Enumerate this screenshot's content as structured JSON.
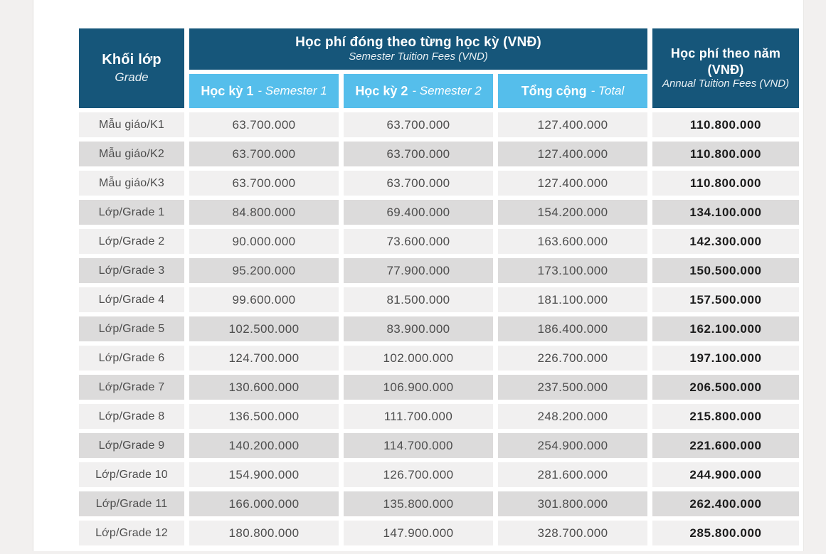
{
  "colors": {
    "header_dark": "#16567A",
    "header_light_blue": "#55BEEB",
    "row_light": "#F1F0F0",
    "row_shaded": "#DCDBDB",
    "body_text": "#4D4D4D",
    "annual_text": "#1C1C1C",
    "header_text": "#FFFFFF",
    "viewer_background": "#F2F0EF"
  },
  "table": {
    "header": {
      "grade_label": "Khối lớp",
      "grade_sublabel": "Grade",
      "semester_span_title": "Học phí đóng theo từng học kỳ (VNĐ)",
      "semester_span_subtitle": "Semester Tuition Fees (VND)",
      "sem1_label": "Học kỳ 1",
      "sem1_sublabel": "- Semester 1",
      "sem2_label": "Học kỳ 2",
      "sem2_sublabel": "- Semester 2",
      "total_label": "Tổng cộng",
      "total_sublabel": "- Total",
      "annual_title": "Học phí theo năm (VNĐ)",
      "annual_subtitle": "Annual Tuition Fees (VND)"
    },
    "rows": [
      {
        "grade": "Mẫu giáo/K1",
        "sem1": "63.700.000",
        "sem2": "63.700.000",
        "total": "127.400.000",
        "annual": "110.800.000"
      },
      {
        "grade": "Mẫu giáo/K2",
        "sem1": "63.700.000",
        "sem2": "63.700.000",
        "total": "127.400.000",
        "annual": "110.800.000"
      },
      {
        "grade": "Mẫu giáo/K3",
        "sem1": "63.700.000",
        "sem2": "63.700.000",
        "total": "127.400.000",
        "annual": "110.800.000"
      },
      {
        "grade": "Lớp/Grade 1",
        "sem1": "84.800.000",
        "sem2": "69.400.000",
        "total": "154.200.000",
        "annual": "134.100.000"
      },
      {
        "grade": "Lớp/Grade 2",
        "sem1": "90.000.000",
        "sem2": "73.600.000",
        "total": "163.600.000",
        "annual": "142.300.000"
      },
      {
        "grade": "Lớp/Grade 3",
        "sem1": "95.200.000",
        "sem2": "77.900.000",
        "total": "173.100.000",
        "annual": "150.500.000"
      },
      {
        "grade": "Lớp/Grade 4",
        "sem1": "99.600.000",
        "sem2": "81.500.000",
        "total": "181.100.000",
        "annual": "157.500.000"
      },
      {
        "grade": "Lớp/Grade 5",
        "sem1": "102.500.000",
        "sem2": "83.900.000",
        "total": "186.400.000",
        "annual": "162.100.000"
      },
      {
        "grade": "Lớp/Grade 6",
        "sem1": "124.700.000",
        "sem2": "102.000.000",
        "total": "226.700.000",
        "annual": "197.100.000"
      },
      {
        "grade": "Lớp/Grade 7",
        "sem1": "130.600.000",
        "sem2": "106.900.000",
        "total": "237.500.000",
        "annual": "206.500.000"
      },
      {
        "grade": "Lớp/Grade 8",
        "sem1": "136.500.000",
        "sem2": "111.700.000",
        "total": "248.200.000",
        "annual": "215.800.000"
      },
      {
        "grade": "Lớp/Grade 9",
        "sem1": "140.200.000",
        "sem2": "114.700.000",
        "total": "254.900.000",
        "annual": "221.600.000"
      },
      {
        "grade": "Lớp/Grade 10",
        "sem1": "154.900.000",
        "sem2": "126.700.000",
        "total": "281.600.000",
        "annual": "244.900.000"
      },
      {
        "grade": "Lớp/Grade 11",
        "sem1": "166.000.000",
        "sem2": "135.800.000",
        "total": "301.800.000",
        "annual": "262.400.000"
      },
      {
        "grade": "Lớp/Grade 12",
        "sem1": "180.800.000",
        "sem2": "147.900.000",
        "total": "328.700.000",
        "annual": "285.800.000"
      }
    ]
  }
}
